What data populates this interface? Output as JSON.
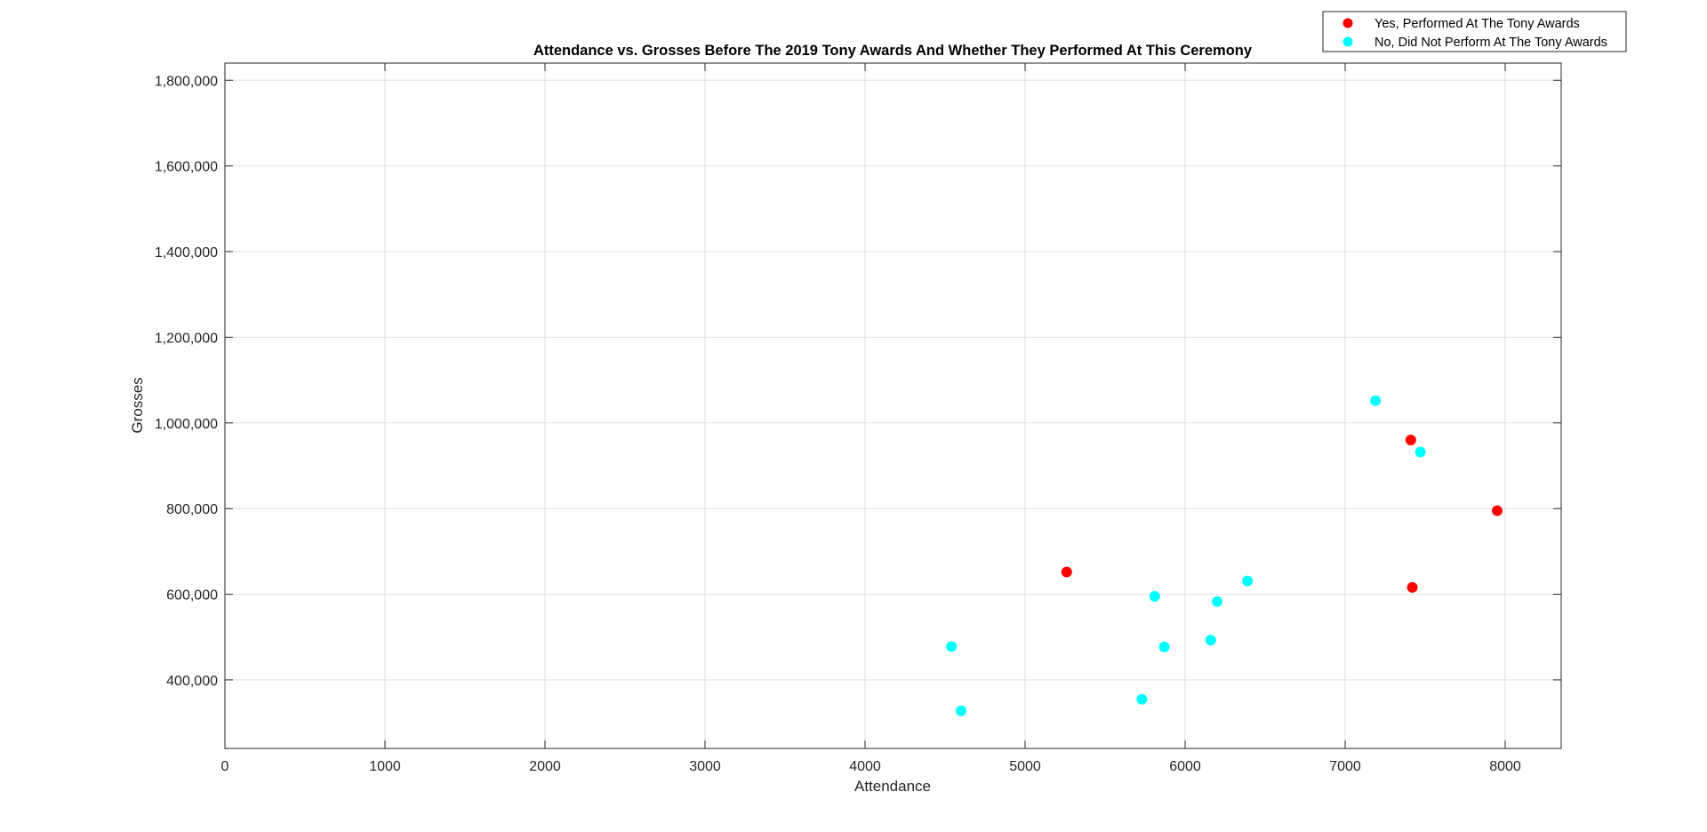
{
  "chart_data": {
    "type": "scatter",
    "title": "Attendance vs. Grosses Before The 2019 Tony Awards And Whether They Performed At This Ceremony",
    "xlabel": "Attendance",
    "ylabel": "Grosses",
    "xlim": [
      0,
      8350
    ],
    "ylim": [
      240000,
      1840000
    ],
    "xticks": [
      0,
      1000,
      2000,
      3000,
      4000,
      5000,
      6000,
      7000,
      8000
    ],
    "xtick_labels": [
      "0",
      "1000",
      "2000",
      "3000",
      "4000",
      "5000",
      "6000",
      "7000",
      "8000"
    ],
    "yticks": [
      400000,
      600000,
      800000,
      1000000,
      1200000,
      1400000,
      1600000,
      1800000
    ],
    "ytick_labels": [
      "400,000",
      "600,000",
      "800,000",
      "1,000,000",
      "1,200,000",
      "1,400,000",
      "1,600,000",
      "1,800,000"
    ],
    "grid": true,
    "legend_position": "top-right",
    "series": [
      {
        "name": "Yes, Performed At The Tony Awards",
        "color": "#ff0000",
        "points": [
          {
            "x": 5260,
            "y": 652000
          },
          {
            "x": 7410,
            "y": 960000
          },
          {
            "x": 7420,
            "y": 616000
          },
          {
            "x": 7950,
            "y": 795000
          }
        ]
      },
      {
        "name": "No, Did Not Perform At The Tony Awards",
        "color": "#00ffff",
        "points": [
          {
            "x": 4540,
            "y": 478000
          },
          {
            "x": 4600,
            "y": 328000
          },
          {
            "x": 5730,
            "y": 355000
          },
          {
            "x": 5810,
            "y": 595000
          },
          {
            "x": 5870,
            "y": 477000
          },
          {
            "x": 6160,
            "y": 493000
          },
          {
            "x": 6200,
            "y": 583000
          },
          {
            "x": 6390,
            "y": 631000
          },
          {
            "x": 7190,
            "y": 1052000
          },
          {
            "x": 7470,
            "y": 932000
          }
        ]
      }
    ]
  }
}
